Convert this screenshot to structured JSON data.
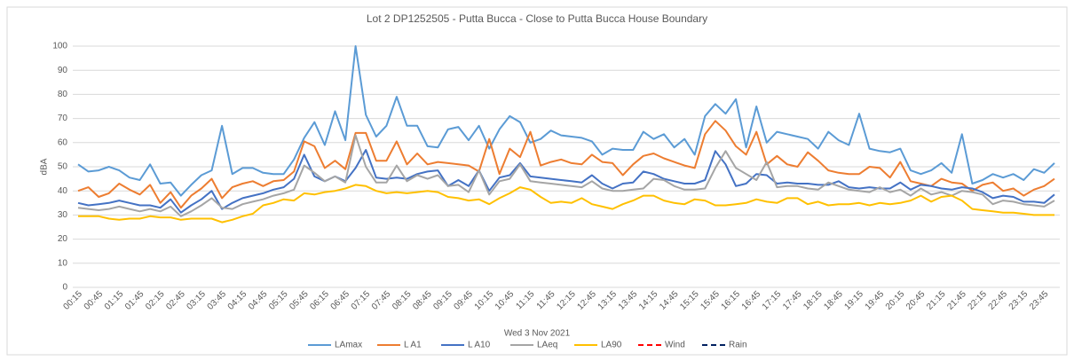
{
  "chart_data": {
    "type": "line",
    "title": "Lot 2 DP1252505 - Putta Bucca - Close to Putta Bucca House Boundary",
    "xlabel": "Wed 3 Nov 2021",
    "ylabel": "dBA",
    "categories": [
      "00:15",
      null,
      "00:45",
      null,
      "01:15",
      null,
      "01:45",
      null,
      "02:15",
      null,
      "02:45",
      null,
      "03:15",
      null,
      "03:45",
      null,
      "04:15",
      null,
      "04:45",
      null,
      "05:15",
      null,
      "05:45",
      null,
      "06:15",
      null,
      "06:45",
      null,
      "07:15",
      null,
      "07:45",
      null,
      "08:15",
      null,
      "08:45",
      null,
      "09:15",
      null,
      "09:45",
      null,
      "10:15",
      null,
      "10:45",
      null,
      "11:15",
      null,
      "11:45",
      null,
      "12:15",
      null,
      "12:45",
      null,
      "13:15",
      null,
      "13:45",
      null,
      "14:15",
      null,
      "14:45",
      null,
      "15:15",
      null,
      "15:45",
      null,
      "16:15",
      null,
      "16:45",
      null,
      "17:15",
      null,
      "17:45",
      null,
      "18:15",
      null,
      "18:45",
      null,
      "19:15",
      null,
      "19:45",
      null,
      "20:15",
      null,
      "20:45",
      null,
      "21:15",
      null,
      "21:45",
      null,
      "22:15",
      null,
      "22:45",
      null,
      "23:15",
      null,
      "23:45",
      null
    ],
    "ylim": [
      0,
      100
    ],
    "yticks": [
      0,
      10,
      20,
      30,
      40,
      50,
      60,
      70,
      80,
      90,
      100
    ],
    "grid": true,
    "legend": "bottom",
    "series": [
      {
        "name": "LAmax",
        "color": "#5b9bd5",
        "values": [
          51,
          48,
          48.5,
          50,
          48.5,
          45.5,
          44.5,
          51,
          43,
          43.5,
          38,
          42.5,
          46.5,
          48.5,
          67,
          47,
          49.5,
          49.5,
          47.5,
          47,
          47,
          53,
          62,
          68.5,
          59,
          73,
          61,
          100,
          71.5,
          62.5,
          67,
          79,
          67,
          67,
          58.5,
          58,
          65.5,
          66.5,
          61,
          67,
          57.5,
          65.5,
          71,
          68.5,
          60,
          61.5,
          65,
          63,
          62.5,
          62,
          60.5,
          55,
          57.5,
          57,
          57,
          64.5,
          61.5,
          63.5,
          58,
          61.5,
          55,
          71,
          76,
          72,
          78,
          58,
          75,
          60,
          64.5,
          63.5,
          62.5,
          61.5,
          57.5,
          64.5,
          61,
          59,
          72,
          57.5,
          56.5,
          56,
          57.5,
          48.5,
          47,
          48.5,
          51.5,
          47.5,
          63.5,
          43,
          44.5,
          47,
          45.5,
          47,
          44.5,
          49,
          47.5,
          51.5
        ]
      },
      {
        "name": "L A1",
        "color": "#ed7d31",
        "values": [
          40,
          41.5,
          37.5,
          39,
          43,
          40.5,
          38.5,
          42.5,
          35,
          39.5,
          33,
          38,
          41,
          45,
          37,
          41.5,
          43,
          44,
          42,
          44,
          44.5,
          48,
          60.5,
          58.5,
          49.5,
          52.5,
          49,
          64,
          64,
          52.5,
          52.5,
          60.5,
          51,
          55.5,
          51,
          52,
          51.5,
          51,
          50.5,
          48,
          61.5,
          47,
          57.5,
          54,
          64.5,
          50.5,
          52,
          53,
          51.5,
          51,
          55,
          52,
          51.5,
          46.5,
          51,
          54.5,
          55.5,
          53.5,
          52,
          50.5,
          49.5,
          63.5,
          69,
          65,
          58.5,
          55,
          64.5,
          51,
          54.5,
          51,
          50,
          56,
          52.5,
          48.5,
          47.5,
          47,
          47,
          50,
          49.5,
          45.5,
          52,
          44,
          43,
          42,
          45,
          43.5,
          43,
          40,
          42.5,
          43.5,
          40,
          41,
          38,
          40.5,
          42,
          45
        ]
      },
      {
        "name": "L A10",
        "color": "#4472c4",
        "values": [
          35,
          34,
          34.5,
          35,
          36,
          35,
          34,
          34,
          33,
          36.5,
          31,
          34,
          36.5,
          40,
          32.5,
          35,
          37,
          38,
          39,
          40.5,
          41.5,
          45,
          55,
          46,
          44,
          46,
          44,
          49.5,
          57,
          45.5,
          45,
          45.5,
          45,
          47,
          48,
          48.5,
          42,
          44.5,
          42,
          48.5,
          40,
          45.5,
          46.5,
          51.5,
          46,
          45.5,
          45,
          44.5,
          44,
          43.5,
          46.5,
          43,
          41,
          43,
          43.5,
          48,
          47,
          45,
          44,
          43,
          43,
          44.5,
          56.5,
          51,
          42,
          43,
          47,
          46.5,
          43,
          43.5,
          43,
          43,
          42.5,
          42.5,
          44,
          41.5,
          41,
          41.5,
          41,
          41,
          43.5,
          40.5,
          42.5,
          42,
          41,
          40.5,
          41.5,
          41,
          39.5,
          37,
          38,
          37.5,
          35.5,
          35.5,
          35,
          38.5
        ]
      },
      {
        "name": "LAeq",
        "color": "#a5a5a5",
        "values": [
          33,
          32.5,
          32,
          32.5,
          33.5,
          32.5,
          31.5,
          32.5,
          31.5,
          33.5,
          29.5,
          31.5,
          34,
          37,
          33,
          32.5,
          34.5,
          35.5,
          36.5,
          38,
          39,
          40.5,
          50.5,
          47.5,
          44,
          46,
          43.5,
          63,
          50,
          43.5,
          43.5,
          50.5,
          44,
          46.5,
          45,
          46.5,
          42,
          42.5,
          39.5,
          48.5,
          38.5,
          44,
          45,
          51,
          44,
          43.5,
          43,
          42.5,
          42,
          41.5,
          44,
          41,
          40,
          40,
          40.5,
          41,
          45,
          44.5,
          42,
          40.5,
          40.5,
          41,
          49.5,
          56.5,
          49.5,
          47,
          44.5,
          52,
          41.5,
          42,
          42,
          41,
          40.5,
          43.5,
          42,
          40.5,
          40,
          39.5,
          41.5,
          39.5,
          40.5,
          38,
          41,
          38.5,
          39.5,
          38,
          40,
          39.5,
          38.5,
          34.5,
          36,
          35.5,
          34.5,
          34,
          33.5,
          36
        ]
      },
      {
        "name": "LA90",
        "color": "#ffc000",
        "values": [
          29.5,
          29.5,
          29.5,
          28.5,
          28,
          28.5,
          28.5,
          29.5,
          29,
          29,
          28,
          28.5,
          28.5,
          28.5,
          27,
          28,
          29.5,
          30.5,
          34,
          35,
          36.5,
          36,
          39,
          38.5,
          39.5,
          40,
          41,
          42.5,
          42,
          40,
          39,
          39.5,
          39,
          39.5,
          40,
          39.5,
          37.5,
          37,
          36,
          36.5,
          34.5,
          37,
          39,
          41.5,
          40.5,
          37.5,
          35,
          35.5,
          35,
          37,
          34.5,
          33.5,
          32.5,
          34.5,
          36,
          38,
          38,
          36,
          35,
          34.5,
          36.5,
          36,
          34,
          34,
          34.5,
          35,
          36.5,
          35.5,
          35,
          37,
          37,
          34.5,
          35.5,
          34,
          34.5,
          34.5,
          35,
          34,
          35,
          34.5,
          35,
          36,
          38,
          35.5,
          37.5,
          38,
          36,
          32.5,
          32,
          31.5,
          31,
          31,
          30.5,
          30,
          30,
          30
        ]
      },
      {
        "name": "Wind",
        "color": "#ff0000",
        "dashed": true,
        "values": [
          null,
          null,
          null,
          null,
          null,
          null,
          null,
          null,
          null,
          null,
          null,
          null,
          null,
          null,
          null,
          null,
          null,
          null,
          null,
          null,
          null,
          null,
          null,
          null,
          null,
          null,
          null,
          null,
          null,
          null,
          null,
          null,
          null,
          null,
          null,
          null,
          null,
          null,
          null,
          null,
          null,
          null,
          null,
          null,
          null,
          null,
          null,
          null,
          null,
          null,
          null,
          null,
          null,
          null,
          null,
          null,
          null,
          null,
          null,
          null,
          null,
          null,
          null,
          null,
          null,
          null,
          null,
          null,
          null,
          null,
          null,
          null,
          null,
          null,
          null,
          null,
          null,
          null,
          null,
          null,
          null,
          null,
          null,
          null,
          null,
          null,
          null,
          null,
          null,
          null,
          null,
          null,
          null,
          null,
          null,
          null
        ]
      },
      {
        "name": "Rain",
        "color": "#002060",
        "dashed": true,
        "values": [
          null,
          null,
          null,
          null,
          null,
          null,
          null,
          null,
          null,
          null,
          null,
          null,
          null,
          null,
          null,
          null,
          null,
          null,
          null,
          null,
          null,
          null,
          null,
          null,
          null,
          null,
          null,
          null,
          null,
          null,
          null,
          null,
          null,
          null,
          null,
          null,
          null,
          null,
          null,
          null,
          null,
          null,
          null,
          null,
          null,
          null,
          null,
          null,
          null,
          null,
          null,
          null,
          null,
          null,
          null,
          null,
          null,
          null,
          null,
          null,
          null,
          null,
          null,
          null,
          null,
          null,
          null,
          null,
          null,
          null,
          null,
          null,
          null,
          null,
          null,
          null,
          null,
          null,
          null,
          null,
          null,
          null,
          null,
          null,
          null,
          null,
          null,
          null,
          null,
          null,
          null,
          null,
          null,
          null,
          null,
          null
        ]
      }
    ]
  }
}
